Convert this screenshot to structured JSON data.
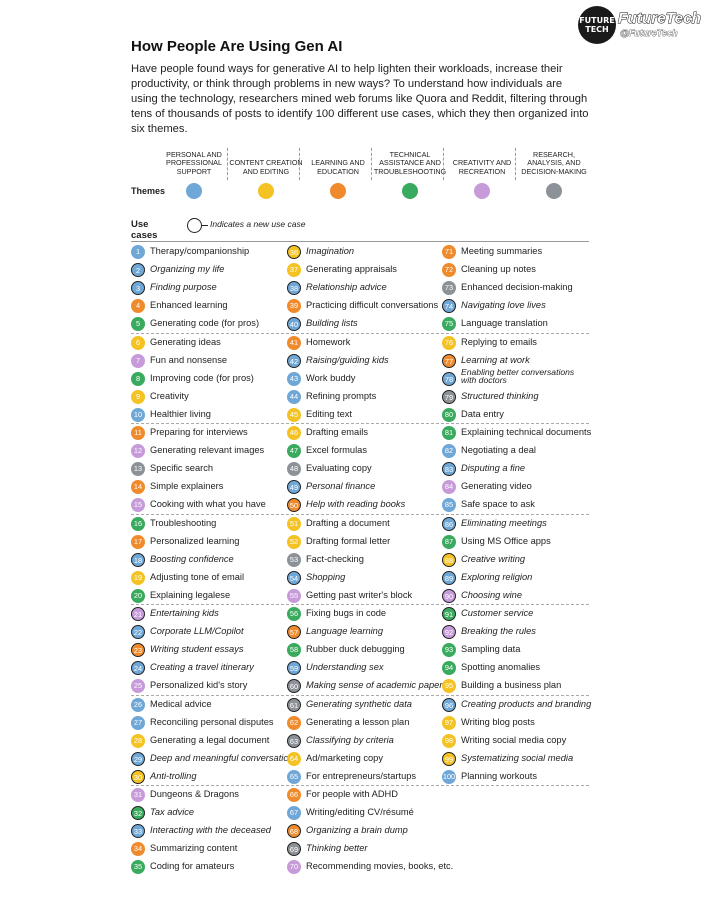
{
  "brand": {
    "badge_text": "FUTURE TECH",
    "name": "FutureTech",
    "handle": "@FutureTech"
  },
  "title": "How People Are Using Gen AI",
  "intro": "Have people found ways for generative AI to help lighten their workloads, increase their productivity, or think through problems in new ways? To understand how individuals are using the technology, researchers mined web forums like Quora and Reddit, filtering through tens of thousands of posts to identify 100 different use cases, which they then organized into six themes.",
  "themes_label": "Themes",
  "themes": [
    {
      "name": "PERSONAL AND PROFESSIONAL SUPPORT",
      "color": "#6fa7d6"
    },
    {
      "name": "CONTENT CREATION AND EDITING",
      "color": "#f4c223"
    },
    {
      "name": "LEARNING AND EDUCATION",
      "color": "#ef8b2c"
    },
    {
      "name": "TECHNICAL ASSISTANCE AND TROUBLESHOOTING",
      "color": "#3aaa5e"
    },
    {
      "name": "CREATIVITY AND RECREATION",
      "color": "#c79ad9"
    },
    {
      "name": "RESEARCH, ANALYSIS, AND DECISION-MAKING",
      "color": "#8c9297"
    }
  ],
  "use_cases_label": "Use cases",
  "legend_text": "Indicates a new use case",
  "use_cases": [
    {
      "n": "1",
      "label": "Therapy/companionship",
      "theme": 0,
      "new": false
    },
    {
      "n": "2",
      "label": "Organizing my life",
      "theme": 0,
      "new": true
    },
    {
      "n": "3",
      "label": "Finding purpose",
      "theme": 0,
      "new": true
    },
    {
      "n": "4",
      "label": "Enhanced learning",
      "theme": 2,
      "new": false
    },
    {
      "n": "5",
      "label": "Generating code (for pros)",
      "theme": 3,
      "new": false
    },
    {
      "n": "6",
      "label": "Generating ideas",
      "theme": 1,
      "new": false
    },
    {
      "n": "7",
      "label": "Fun and nonsense",
      "theme": 4,
      "new": false
    },
    {
      "n": "8",
      "label": "Improving code (for pros)",
      "theme": 3,
      "new": false
    },
    {
      "n": "9",
      "label": "Creativity",
      "theme": 1,
      "new": false
    },
    {
      "n": "10",
      "label": "Healthier living",
      "theme": 0,
      "new": false
    },
    {
      "n": "11",
      "label": "Preparing for interviews",
      "theme": 2,
      "new": false
    },
    {
      "n": "12",
      "label": "Generating relevant images",
      "theme": 4,
      "new": false
    },
    {
      "n": "13",
      "label": "Specific search",
      "theme": 5,
      "new": false
    },
    {
      "n": "14",
      "label": "Simple explainers",
      "theme": 2,
      "new": false
    },
    {
      "n": "15",
      "label": "Cooking with what you have",
      "theme": 4,
      "new": false
    },
    {
      "n": "16",
      "label": "Troubleshooting",
      "theme": 3,
      "new": false
    },
    {
      "n": "17",
      "label": "Personalized learning",
      "theme": 2,
      "new": false
    },
    {
      "n": "18",
      "label": "Boosting confidence",
      "theme": 0,
      "new": true
    },
    {
      "n": "19",
      "label": "Adjusting tone of email",
      "theme": 1,
      "new": false
    },
    {
      "n": "20",
      "label": "Explaining legalese",
      "theme": 3,
      "new": false
    },
    {
      "n": "21",
      "label": "Entertaining kids",
      "theme": 4,
      "new": true
    },
    {
      "n": "22",
      "label": "Corporate LLM/Copilot",
      "theme": 0,
      "new": true
    },
    {
      "n": "23",
      "label": "Writing student essays",
      "theme": 2,
      "new": true
    },
    {
      "n": "24",
      "label": "Creating a travel itinerary",
      "theme": 0,
      "new": true
    },
    {
      "n": "25",
      "label": "Personalized kid's story",
      "theme": 4,
      "new": false
    },
    {
      "n": "26",
      "label": "Medical advice",
      "theme": 0,
      "new": false
    },
    {
      "n": "27",
      "label": "Reconciling personal disputes",
      "theme": 0,
      "new": false
    },
    {
      "n": "28",
      "label": "Generating a legal document",
      "theme": 1,
      "new": false
    },
    {
      "n": "29",
      "label": "Deep and meaningful conversations",
      "theme": 0,
      "new": true
    },
    {
      "n": "30",
      "label": "Anti-trolling",
      "theme": 1,
      "new": true
    },
    {
      "n": "31",
      "label": "Dungeons & Dragons",
      "theme": 4,
      "new": false
    },
    {
      "n": "32",
      "label": "Tax advice",
      "theme": 3,
      "new": true
    },
    {
      "n": "33",
      "label": "Interacting with the deceased",
      "theme": 0,
      "new": true
    },
    {
      "n": "34",
      "label": "Summarizing content",
      "theme": 2,
      "new": false
    },
    {
      "n": "35",
      "label": "Coding for amateurs",
      "theme": 3,
      "new": false
    },
    {
      "n": "36",
      "label": "Imagination",
      "theme": 1,
      "new": true
    },
    {
      "n": "37",
      "label": "Generating appraisals",
      "theme": 1,
      "new": false
    },
    {
      "n": "38",
      "label": "Relationship advice",
      "theme": 0,
      "new": true
    },
    {
      "n": "39",
      "label": "Practicing difficult conversations",
      "theme": 2,
      "new": false
    },
    {
      "n": "40",
      "label": "Building lists",
      "theme": 0,
      "new": true
    },
    {
      "n": "41",
      "label": "Homework",
      "theme": 2,
      "new": false
    },
    {
      "n": "42",
      "label": "Raising/guiding kids",
      "theme": 0,
      "new": true
    },
    {
      "n": "43",
      "label": "Work buddy",
      "theme": 0,
      "new": false
    },
    {
      "n": "44",
      "label": "Refining prompts",
      "theme": 0,
      "new": false
    },
    {
      "n": "45",
      "label": "Editing text",
      "theme": 1,
      "new": false
    },
    {
      "n": "46",
      "label": "Drafting emails",
      "theme": 1,
      "new": false
    },
    {
      "n": "47",
      "label": "Excel formulas",
      "theme": 3,
      "new": false
    },
    {
      "n": "48",
      "label": "Evaluating copy",
      "theme": 5,
      "new": false
    },
    {
      "n": "49",
      "label": "Personal finance",
      "theme": 0,
      "new": true
    },
    {
      "n": "50",
      "label": "Help with reading books",
      "theme": 2,
      "new": true
    },
    {
      "n": "51",
      "label": "Drafting a document",
      "theme": 1,
      "new": false
    },
    {
      "n": "52",
      "label": "Drafting formal letter",
      "theme": 1,
      "new": false
    },
    {
      "n": "53",
      "label": "Fact-checking",
      "theme": 5,
      "new": false
    },
    {
      "n": "54",
      "label": "Shopping",
      "theme": 0,
      "new": true
    },
    {
      "n": "55",
      "label": "Getting past writer's block",
      "theme": 4,
      "new": false
    },
    {
      "n": "56",
      "label": "Fixing bugs in code",
      "theme": 3,
      "new": false
    },
    {
      "n": "57",
      "label": "Language learning",
      "theme": 2,
      "new": true
    },
    {
      "n": "58",
      "label": "Rubber duck debugging",
      "theme": 3,
      "new": false
    },
    {
      "n": "59",
      "label": "Understanding sex",
      "theme": 0,
      "new": true
    },
    {
      "n": "60",
      "label": "Making sense of academic papers",
      "theme": 5,
      "new": true
    },
    {
      "n": "61",
      "label": "Generating synthetic data",
      "theme": 5,
      "new": true
    },
    {
      "n": "62",
      "label": "Generating a lesson plan",
      "theme": 2,
      "new": false
    },
    {
      "n": "63",
      "label": "Classifying by criteria",
      "theme": 5,
      "new": true
    },
    {
      "n": "64",
      "label": "Ad/marketing copy",
      "theme": 1,
      "new": false
    },
    {
      "n": "65",
      "label": "For entrepreneurs/startups",
      "theme": 0,
      "new": false
    },
    {
      "n": "66",
      "label": "For people with ADHD",
      "theme": 2,
      "new": false
    },
    {
      "n": "67",
      "label": "Writing/editing CV/résumé",
      "theme": 0,
      "new": false
    },
    {
      "n": "68",
      "label": "Organizing a brain dump",
      "theme": 2,
      "new": true
    },
    {
      "n": "69",
      "label": "Thinking better",
      "theme": 5,
      "new": true
    },
    {
      "n": "70",
      "label": "Recommending movies, books, etc.",
      "theme": 4,
      "new": false
    },
    {
      "n": "71",
      "label": "Meeting summaries",
      "theme": 2,
      "new": false
    },
    {
      "n": "72",
      "label": "Cleaning up notes",
      "theme": 2,
      "new": false
    },
    {
      "n": "73",
      "label": "Enhanced decision-making",
      "theme": 5,
      "new": false
    },
    {
      "n": "74",
      "label": "Navigating love lives",
      "theme": 0,
      "new": true
    },
    {
      "n": "75",
      "label": "Language translation",
      "theme": 3,
      "new": false
    },
    {
      "n": "76",
      "label": "Replying to emails",
      "theme": 1,
      "new": false
    },
    {
      "n": "77",
      "label": "Learning at work",
      "theme": 2,
      "new": true
    },
    {
      "n": "78",
      "label": "Enabling better conversations with doctors",
      "theme": 0,
      "new": true
    },
    {
      "n": "79",
      "label": "Structured thinking",
      "theme": 5,
      "new": true
    },
    {
      "n": "80",
      "label": "Data entry",
      "theme": 3,
      "new": false
    },
    {
      "n": "81",
      "label": "Explaining technical documents",
      "theme": 3,
      "new": false
    },
    {
      "n": "82",
      "label": "Negotiating a deal",
      "theme": 0,
      "new": false
    },
    {
      "n": "83",
      "label": "Disputing a fine",
      "theme": 0,
      "new": true
    },
    {
      "n": "84",
      "label": "Generating video",
      "theme": 4,
      "new": false
    },
    {
      "n": "85",
      "label": "Safe space to ask",
      "theme": 0,
      "new": false
    },
    {
      "n": "86",
      "label": "Eliminating meetings",
      "theme": 0,
      "new": true
    },
    {
      "n": "87",
      "label": "Using MS Office apps",
      "theme": 3,
      "new": false
    },
    {
      "n": "88",
      "label": "Creative writing",
      "theme": 1,
      "new": true
    },
    {
      "n": "89",
      "label": "Exploring religion",
      "theme": 0,
      "new": true
    },
    {
      "n": "90",
      "label": "Choosing wine",
      "theme": 4,
      "new": true
    },
    {
      "n": "91",
      "label": "Customer service",
      "theme": 3,
      "new": true
    },
    {
      "n": "92",
      "label": "Breaking the rules",
      "theme": 4,
      "new": true
    },
    {
      "n": "93",
      "label": "Sampling data",
      "theme": 3,
      "new": false
    },
    {
      "n": "94",
      "label": "Spotting anomalies",
      "theme": 3,
      "new": false
    },
    {
      "n": "95",
      "label": "Building a business plan",
      "theme": 1,
      "new": false
    },
    {
      "n": "96",
      "label": "Creating products and branding",
      "theme": 0,
      "new": true
    },
    {
      "n": "97",
      "label": "Writing blog posts",
      "theme": 1,
      "new": false
    },
    {
      "n": "98",
      "label": "Writing social media copy",
      "theme": 1,
      "new": false
    },
    {
      "n": "99",
      "label": "Systematizing social media",
      "theme": 1,
      "new": true
    },
    {
      "n": "100",
      "label": "Planning workouts",
      "theme": 0,
      "new": false
    }
  ]
}
